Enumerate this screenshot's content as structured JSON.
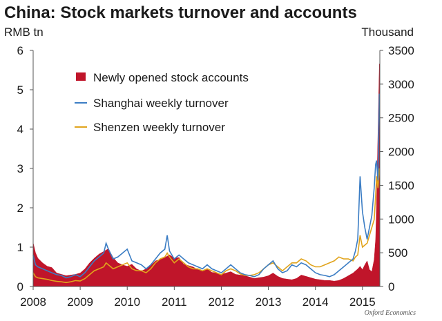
{
  "colors": {
    "accounts": "#c0152a",
    "shanghai": "#3b7dc4",
    "shenzhen": "#e1a41c"
  },
  "chart_data": {
    "type": "line",
    "title": "China: Stock markets turnover and accounts",
    "y_left_label": "RMB tn",
    "y_right_label": "Thousand",
    "y_left_lim": [
      0,
      6
    ],
    "y_right_lim": [
      0,
      3500
    ],
    "y_left_ticks": [
      "0",
      "1",
      "2",
      "3",
      "4",
      "5",
      "6"
    ],
    "y_right_ticks": [
      "0",
      "500",
      "1000",
      "1500",
      "2000",
      "2500",
      "3000",
      "3500"
    ],
    "y_left_tick_values": [
      0,
      1,
      2,
      3,
      4,
      5,
      6
    ],
    "y_right_tick_values": [
      0,
      500,
      1000,
      1500,
      2000,
      2500,
      3000,
      3500
    ],
    "x_lim": [
      2008.0,
      2015.37
    ],
    "x_ticks": [
      "2008",
      "2009",
      "2010",
      "2011",
      "2012",
      "2013",
      "2014",
      "2015"
    ],
    "x_tick_values": [
      2008,
      2009,
      2010,
      2011,
      2012,
      2013,
      2014,
      2015
    ],
    "source_note": "Oxford Economics",
    "legend": [
      {
        "label": "Newly opened stock accounts",
        "kind": "area",
        "series": "accounts"
      },
      {
        "label": "Shanghai weekly turnover",
        "kind": "line",
        "series": "shanghai"
      },
      {
        "label": "Shenzen weekly turnover",
        "kind": "line",
        "series": "shenzhen"
      }
    ],
    "series": [
      {
        "name": "Newly opened stock accounts",
        "key": "accounts",
        "axis": "right",
        "kind": "area",
        "x": [
          2008.0,
          2008.05,
          2008.1,
          2008.2,
          2008.3,
          2008.4,
          2008.5,
          2008.6,
          2008.7,
          2008.8,
          2008.9,
          2009.0,
          2009.1,
          2009.2,
          2009.3,
          2009.4,
          2009.5,
          2009.6,
          2009.7,
          2009.8,
          2009.9,
          2010.0,
          2010.1,
          2010.2,
          2010.3,
          2010.4,
          2010.5,
          2010.6,
          2010.7,
          2010.8,
          2010.9,
          2011.0,
          2011.1,
          2011.2,
          2011.3,
          2011.4,
          2011.5,
          2011.6,
          2011.7,
          2011.8,
          2011.9,
          2012.0,
          2012.1,
          2012.2,
          2012.3,
          2012.4,
          2012.5,
          2012.6,
          2012.7,
          2012.8,
          2012.9,
          2013.0,
          2013.1,
          2013.2,
          2013.3,
          2013.4,
          2013.5,
          2013.6,
          2013.7,
          2013.8,
          2013.9,
          2014.0,
          2014.1,
          2014.2,
          2014.3,
          2014.4,
          2014.5,
          2014.6,
          2014.7,
          2014.8,
          2014.85,
          2014.9,
          2014.95,
          2015.0,
          2015.05,
          2015.1,
          2015.15,
          2015.2,
          2015.25,
          2015.28,
          2015.3,
          2015.33,
          2015.36
        ],
        "values": [
          650,
          500,
          420,
          350,
          300,
          280,
          200,
          180,
          160,
          170,
          180,
          200,
          260,
          350,
          420,
          480,
          520,
          560,
          430,
          350,
          320,
          300,
          330,
          260,
          230,
          260,
          310,
          380,
          400,
          430,
          470,
          420,
          430,
          330,
          310,
          290,
          250,
          230,
          260,
          210,
          200,
          180,
          200,
          220,
          180,
          170,
          160,
          140,
          120,
          130,
          140,
          160,
          200,
          150,
          120,
          110,
          100,
          120,
          170,
          150,
          130,
          110,
          100,
          90,
          90,
          80,
          90,
          120,
          160,
          200,
          230,
          260,
          300,
          250,
          320,
          380,
          250,
          220,
          400,
          700,
          1200,
          2300,
          3300
        ]
      },
      {
        "name": "Shanghai weekly turnover",
        "key": "shanghai",
        "axis": "left",
        "kind": "line",
        "x": [
          2008.0,
          2008.05,
          2008.1,
          2008.2,
          2008.3,
          2008.4,
          2008.5,
          2008.6,
          2008.7,
          2008.8,
          2008.9,
          2009.0,
          2009.1,
          2009.2,
          2009.3,
          2009.4,
          2009.5,
          2009.55,
          2009.6,
          2009.7,
          2009.8,
          2009.9,
          2010.0,
          2010.1,
          2010.2,
          2010.3,
          2010.4,
          2010.5,
          2010.6,
          2010.7,
          2010.8,
          2010.85,
          2010.9,
          2011.0,
          2011.1,
          2011.2,
          2011.3,
          2011.4,
          2011.5,
          2011.6,
          2011.7,
          2011.8,
          2011.9,
          2012.0,
          2012.1,
          2012.2,
          2012.3,
          2012.4,
          2012.5,
          2012.6,
          2012.7,
          2012.8,
          2012.9,
          2013.0,
          2013.1,
          2013.2,
          2013.3,
          2013.4,
          2013.5,
          2013.6,
          2013.7,
          2013.8,
          2013.9,
          2014.0,
          2014.1,
          2014.2,
          2014.3,
          2014.4,
          2014.5,
          2014.6,
          2014.7,
          2014.8,
          2014.85,
          2014.9,
          2014.95,
          2015.0,
          2015.05,
          2015.1,
          2015.15,
          2015.2,
          2015.25,
          2015.28,
          2015.3,
          2015.33,
          2015.36
        ],
        "values": [
          0.8,
          0.55,
          0.5,
          0.45,
          0.4,
          0.35,
          0.3,
          0.28,
          0.22,
          0.25,
          0.3,
          0.25,
          0.35,
          0.5,
          0.65,
          0.75,
          0.85,
          1.1,
          0.95,
          0.7,
          0.75,
          0.85,
          0.95,
          0.65,
          0.6,
          0.55,
          0.45,
          0.55,
          0.7,
          0.85,
          0.95,
          1.3,
          0.9,
          0.7,
          0.8,
          0.7,
          0.6,
          0.55,
          0.5,
          0.45,
          0.55,
          0.45,
          0.4,
          0.35,
          0.45,
          0.55,
          0.45,
          0.35,
          0.3,
          0.28,
          0.25,
          0.3,
          0.45,
          0.55,
          0.65,
          0.45,
          0.35,
          0.4,
          0.55,
          0.5,
          0.6,
          0.55,
          0.45,
          0.35,
          0.3,
          0.28,
          0.25,
          0.3,
          0.4,
          0.5,
          0.6,
          0.7,
          0.9,
          1.2,
          2.8,
          1.9,
          1.5,
          1.2,
          1.5,
          1.8,
          2.5,
          3.1,
          3.2,
          2.7,
          4.9
        ]
      },
      {
        "name": "Shenzen weekly turnover",
        "key": "shenzhen",
        "axis": "left",
        "kind": "line",
        "x": [
          2008.0,
          2008.05,
          2008.1,
          2008.2,
          2008.3,
          2008.4,
          2008.5,
          2008.6,
          2008.7,
          2008.8,
          2008.9,
          2009.0,
          2009.1,
          2009.2,
          2009.3,
          2009.4,
          2009.5,
          2009.55,
          2009.6,
          2009.7,
          2009.8,
          2009.9,
          2010.0,
          2010.1,
          2010.2,
          2010.3,
          2010.4,
          2010.5,
          2010.6,
          2010.7,
          2010.8,
          2010.85,
          2010.9,
          2011.0,
          2011.1,
          2011.2,
          2011.3,
          2011.4,
          2011.5,
          2011.6,
          2011.7,
          2011.8,
          2011.9,
          2012.0,
          2012.1,
          2012.2,
          2012.3,
          2012.4,
          2012.5,
          2012.6,
          2012.7,
          2012.8,
          2012.9,
          2013.0,
          2013.1,
          2013.2,
          2013.3,
          2013.4,
          2013.5,
          2013.6,
          2013.7,
          2013.8,
          2013.9,
          2014.0,
          2014.1,
          2014.2,
          2014.3,
          2014.4,
          2014.5,
          2014.6,
          2014.7,
          2014.8,
          2014.85,
          2014.9,
          2014.95,
          2015.0,
          2015.05,
          2015.1,
          2015.15,
          2015.2,
          2015.25,
          2015.28,
          2015.3,
          2015.33,
          2015.36
        ],
        "values": [
          0.35,
          0.25,
          0.22,
          0.2,
          0.18,
          0.15,
          0.13,
          0.12,
          0.1,
          0.12,
          0.15,
          0.14,
          0.2,
          0.3,
          0.4,
          0.45,
          0.5,
          0.6,
          0.55,
          0.45,
          0.5,
          0.55,
          0.6,
          0.45,
          0.4,
          0.4,
          0.35,
          0.45,
          0.6,
          0.7,
          0.75,
          0.85,
          0.75,
          0.6,
          0.7,
          0.6,
          0.5,
          0.45,
          0.45,
          0.4,
          0.45,
          0.4,
          0.35,
          0.3,
          0.4,
          0.45,
          0.4,
          0.32,
          0.28,
          0.28,
          0.3,
          0.35,
          0.45,
          0.55,
          0.6,
          0.5,
          0.4,
          0.5,
          0.6,
          0.6,
          0.7,
          0.65,
          0.55,
          0.5,
          0.5,
          0.55,
          0.6,
          0.65,
          0.75,
          0.7,
          0.7,
          0.65,
          0.75,
          0.8,
          1.3,
          1.0,
          1.05,
          1.1,
          1.3,
          1.5,
          1.7,
          2.3,
          2.8,
          2.5,
          3.0
        ]
      }
    ]
  }
}
